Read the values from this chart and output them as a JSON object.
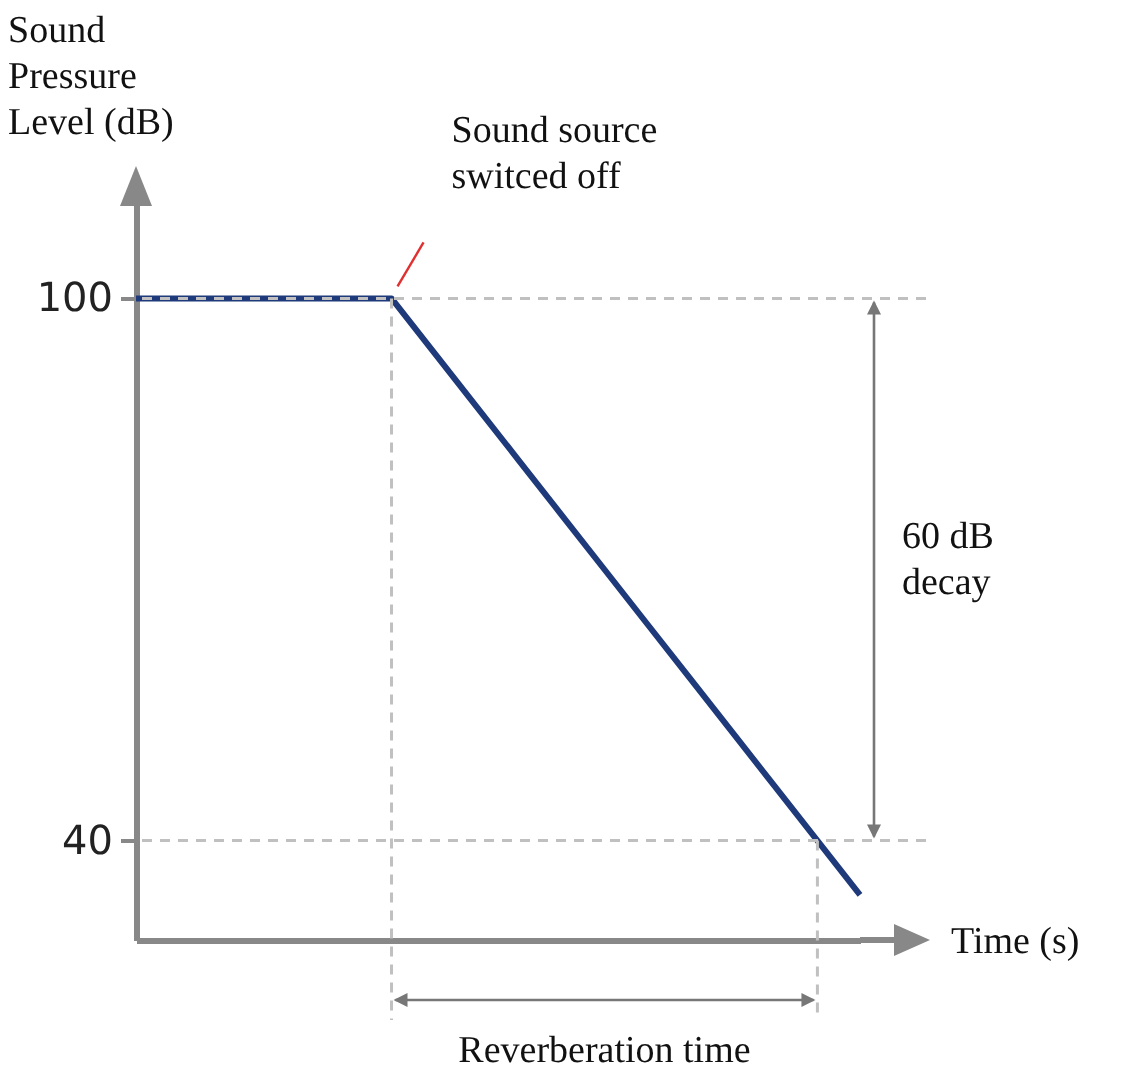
{
  "chart_data": {
    "type": "line",
    "ylabel": "Sound Pressure Level (dB)",
    "xlabel": "Time (s)",
    "categories": [
      null,
      null,
      null,
      null,
      null,
      null,
      null,
      null,
      null,
      null,
      null,
      null,
      null,
      null,
      null,
      null,
      null,
      null
    ],
    "series": [
      {
        "color": "#1f3a7a",
        "values": [
          100,
          100,
          100,
          100,
          100,
          100,
          100,
          94,
          88,
          82,
          76,
          70,
          64,
          58,
          52,
          46,
          40,
          34
        ]
      }
    ],
    "ylim": [
      29,
      112
    ],
    "yticks": [
      40,
      100
    ],
    "tick_labels": "y",
    "grid": false,
    "marker": "none",
    "line_style": "solid",
    "ref_lines": [
      {
        "axis": "y",
        "value": 100,
        "color": "#c0c0c0",
        "line_style": "dashed"
      },
      {
        "axis": "y",
        "value": 40,
        "color": "#c0c0c0",
        "line_style": "dashed"
      }
    ],
    "annotations": [
      "Sound source switced off",
      "60 dB decay",
      "Reverberation time"
    ]
  }
}
